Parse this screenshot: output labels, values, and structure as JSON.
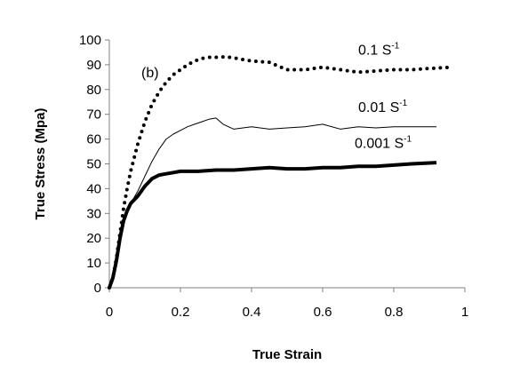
{
  "chart_data": {
    "type": "line",
    "xlabel": "True Strain",
    "ylabel": "True Stress (Mpa)",
    "xlim": [
      0,
      1
    ],
    "ylim": [
      0,
      100
    ],
    "xticks": [
      "0",
      "0.2",
      "0.4",
      "0.6",
      "0.8",
      "1"
    ],
    "yticks": [
      "0",
      "10",
      "20",
      "30",
      "40",
      "50",
      "60",
      "70",
      "80",
      "90",
      "100"
    ],
    "grid": false,
    "legend": "none",
    "annotations": [
      {
        "text": "(b)",
        "x": 0.09,
        "y": 85
      }
    ],
    "series": [
      {
        "name": "0.1 S-1",
        "label_main": "0.1 S",
        "label_sup": "-1",
        "label_at": {
          "x": 0.7,
          "y": 94
        },
        "style": "dotted",
        "x": [
          0,
          0.01,
          0.02,
          0.03,
          0.04,
          0.05,
          0.06,
          0.08,
          0.1,
          0.12,
          0.14,
          0.16,
          0.18,
          0.2,
          0.22,
          0.24,
          0.26,
          0.28,
          0.3,
          0.33,
          0.36,
          0.4,
          0.45,
          0.5,
          0.55,
          0.6,
          0.65,
          0.7,
          0.75,
          0.8,
          0.85,
          0.9,
          0.96
        ],
        "values": [
          0,
          4,
          12,
          22,
          32,
          40,
          47,
          58,
          67,
          74,
          79,
          83,
          86,
          88,
          90,
          91.5,
          92.5,
          93,
          93,
          93.2,
          92.5,
          91.5,
          91,
          88,
          88,
          89,
          88,
          87,
          87.5,
          88,
          88,
          88.5,
          89
        ]
      },
      {
        "name": "0.01 S-1",
        "label_main": "0.01 S",
        "label_sup": "-1",
        "label_at": {
          "x": 0.7,
          "y": 71
        },
        "style": "thin",
        "x": [
          0,
          0.01,
          0.02,
          0.03,
          0.04,
          0.05,
          0.06,
          0.08,
          0.1,
          0.12,
          0.14,
          0.16,
          0.18,
          0.2,
          0.22,
          0.24,
          0.26,
          0.28,
          0.3,
          0.32,
          0.35,
          0.4,
          0.45,
          0.5,
          0.55,
          0.6,
          0.65,
          0.7,
          0.75,
          0.8,
          0.85,
          0.92
        ],
        "values": [
          0,
          4,
          11,
          20,
          27,
          31,
          34,
          39,
          45,
          51,
          56,
          60,
          62,
          63.5,
          65,
          66,
          67,
          68,
          68.5,
          66,
          64,
          65,
          64,
          64.5,
          65,
          66,
          64,
          65,
          64.5,
          65,
          65,
          65
        ]
      },
      {
        "name": "0.001 S-1",
        "label_main": "0.001 S",
        "label_sup": "-1",
        "label_at": {
          "x": 0.69,
          "y": 56.5
        },
        "style": "thick",
        "x": [
          0,
          0.01,
          0.02,
          0.03,
          0.04,
          0.05,
          0.06,
          0.08,
          0.1,
          0.12,
          0.14,
          0.16,
          0.18,
          0.2,
          0.25,
          0.3,
          0.35,
          0.4,
          0.45,
          0.5,
          0.55,
          0.6,
          0.65,
          0.7,
          0.75,
          0.8,
          0.85,
          0.92
        ],
        "values": [
          0,
          4,
          11,
          20,
          27,
          31,
          34,
          37,
          41,
          44,
          45.5,
          46,
          46.5,
          47,
          47,
          47.5,
          47.5,
          48,
          48.5,
          48,
          48,
          48.5,
          48.5,
          49,
          49,
          49.5,
          50,
          50.5
        ]
      }
    ]
  }
}
